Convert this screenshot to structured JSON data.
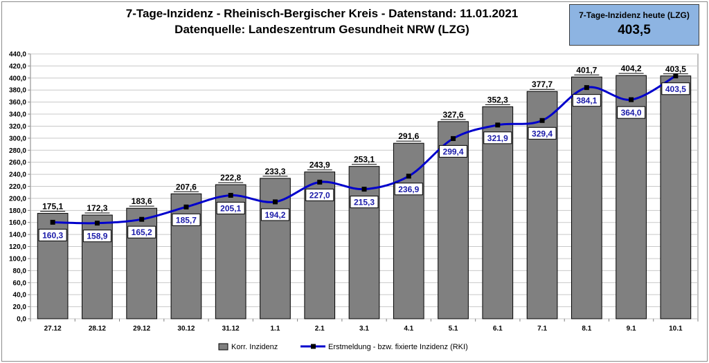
{
  "chart_data": {
    "type": "bar",
    "title": "7-Tage-Inzidenz - Rheinisch-Bergischer Kreis - Datenstand: 11.01.2021",
    "subtitle": "Datenquelle: Landeszentrum Gesundheit NRW (LZG)",
    "categories": [
      "27.12",
      "28.12",
      "29.12",
      "30.12",
      "31.12",
      "1.1",
      "2.1",
      "3.1",
      "4.1",
      "5.1",
      "6.1",
      "7.1",
      "8.1",
      "9.1",
      "10.1"
    ],
    "series": [
      {
        "name": "Korr. Inzidenz",
        "type": "bar",
        "color": "#808080",
        "values": [
          175.1,
          172.3,
          183.6,
          207.6,
          222.8,
          233.3,
          243.9,
          253.1,
          291.6,
          327.6,
          352.3,
          377.7,
          401.7,
          404.2,
          403.5
        ],
        "labels": [
          "175,1",
          "172,3",
          "183,6",
          "207,6",
          "222,8",
          "233,3",
          "243,9",
          "253,1",
          "291,6",
          "327,6",
          "352,3",
          "377,7",
          "401,7",
          "404,2",
          "403,5"
        ]
      },
      {
        "name": "Erstmeldung - bzw. fixierte Inzidenz (RKI)",
        "type": "line",
        "color": "#0000cc",
        "values": [
          160.3,
          158.9,
          165.2,
          185.7,
          205.1,
          194.2,
          227.0,
          215.3,
          236.9,
          299.4,
          321.9,
          329.4,
          384.1,
          364.0,
          403.5
        ],
        "labels": [
          "160,3",
          "158,9",
          "165,2",
          "185,7",
          "205,1",
          "194,2",
          "227,0",
          "215,3",
          "236,9",
          "299,4",
          "321,9",
          "329,4",
          "384,1",
          "364,0",
          "403,5"
        ]
      }
    ],
    "ylim": [
      0,
      440
    ],
    "ystep": 20,
    "ytick_labels": [
      "0,0",
      "20,0",
      "40,0",
      "60,0",
      "80,0",
      "100,0",
      "120,0",
      "140,0",
      "160,0",
      "180,0",
      "200,0",
      "220,0",
      "240,0",
      "260,0",
      "280,0",
      "300,0",
      "320,0",
      "340,0",
      "360,0",
      "380,0",
      "400,0",
      "420,0",
      "440,0"
    ],
    "grid": true,
    "legend": "bottom"
  },
  "infobox": {
    "label": "7-Tage-Inzidenz heute (LZG)",
    "value": "403,5"
  }
}
